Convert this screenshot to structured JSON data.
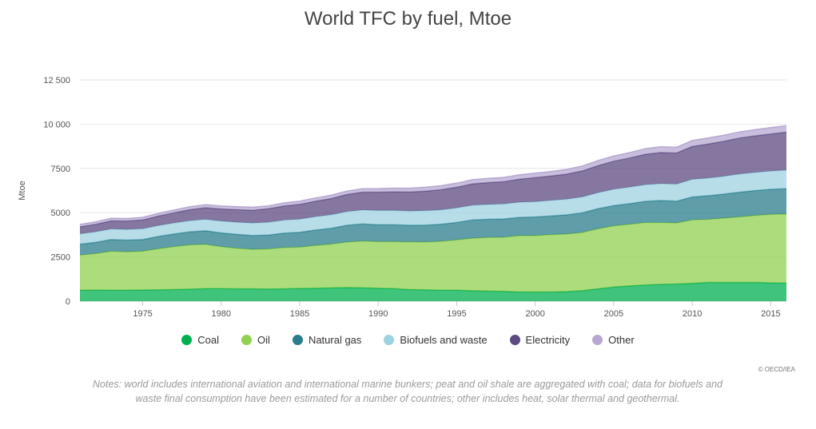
{
  "title": "World TFC by fuel, Mtoe",
  "credit": "© OECD/IEA",
  "notes": "Notes: world includes international aviation and international marine bunkers; peat and oil shale are aggregated with coal; data for biofuels and waste final consumption have been estimated for a number of countries; other includes heat, solar thermal and geothermal.",
  "chart_data": {
    "type": "area",
    "stacked": true,
    "title": "World TFC by fuel, Mtoe",
    "xlabel": "",
    "ylabel": "Mtoe",
    "xlim": [
      1971,
      2016
    ],
    "ylim": [
      0,
      12500
    ],
    "x_ticks": [
      1975,
      1980,
      1985,
      1990,
      1995,
      2000,
      2005,
      2010,
      2015
    ],
    "y_ticks": [
      0,
      2500,
      5000,
      7500,
      10000,
      12500
    ],
    "y_tick_labels": [
      "0",
      "2500",
      "5000",
      "7500",
      "10 000",
      "12 500"
    ],
    "grid": true,
    "legend": "bottom",
    "x": [
      1971,
      1972,
      1973,
      1974,
      1975,
      1976,
      1977,
      1978,
      1979,
      1980,
      1981,
      1982,
      1983,
      1984,
      1985,
      1986,
      1987,
      1988,
      1989,
      1990,
      1991,
      1992,
      1993,
      1994,
      1995,
      1996,
      1997,
      1998,
      1999,
      2000,
      2001,
      2002,
      2003,
      2004,
      2005,
      2006,
      2007,
      2008,
      2009,
      2010,
      2011,
      2012,
      2013,
      2014,
      2015,
      2016
    ],
    "series": [
      {
        "name": "Coal",
        "color": "#00b050",
        "values": [
          620,
          625,
          620,
          620,
          630,
          640,
          660,
          680,
          710,
          710,
          700,
          700,
          690,
          700,
          720,
          730,
          750,
          770,
          760,
          730,
          710,
          660,
          640,
          620,
          620,
          590,
          570,
          560,
          520,
          520,
          520,
          540,
          600,
          700,
          800,
          860,
          910,
          950,
          970,
          1010,
          1060,
          1060,
          1060,
          1060,
          1040,
          1020
        ]
      },
      {
        "name": "Oil",
        "color": "#92d050",
        "values": [
          1980,
          2060,
          2200,
          2170,
          2190,
          2320,
          2420,
          2500,
          2500,
          2370,
          2290,
          2230,
          2260,
          2330,
          2330,
          2420,
          2470,
          2570,
          2640,
          2630,
          2650,
          2690,
          2700,
          2760,
          2840,
          2960,
          3030,
          3050,
          3180,
          3180,
          3240,
          3250,
          3280,
          3390,
          3450,
          3480,
          3530,
          3490,
          3450,
          3580,
          3560,
          3630,
          3700,
          3780,
          3860,
          3900
        ]
      },
      {
        "name": "Natural gas",
        "color": "#2a7d8c",
        "values": [
          620,
          640,
          670,
          660,
          670,
          700,
          720,
          740,
          770,
          780,
          790,
          780,
          790,
          820,
          840,
          870,
          900,
          950,
          970,
          960,
          960,
          940,
          960,
          970,
          990,
          1040,
          1030,
          1040,
          1040,
          1060,
          1060,
          1090,
          1120,
          1140,
          1150,
          1170,
          1200,
          1250,
          1230,
          1300,
          1340,
          1360,
          1400,
          1410,
          1420,
          1440
        ]
      },
      {
        "name": "Biofuels and waste",
        "color": "#9dd2e0",
        "values": [
          580,
          590,
          590,
          600,
          600,
          610,
          620,
          630,
          640,
          660,
          680,
          700,
          720,
          730,
          740,
          750,
          760,
          770,
          780,
          800,
          800,
          800,
          810,
          810,
          820,
          830,
          830,
          840,
          850,
          860,
          870,
          880,
          890,
          900,
          920,
          930,
          940,
          950,
          960,
          990,
          990,
          1000,
          1020,
          1020,
          1030,
          1040
        ]
      },
      {
        "name": "Electricity",
        "color": "#5c4a80",
        "values": [
          400,
          430,
          460,
          480,
          500,
          540,
          580,
          620,
          660,
          690,
          710,
          730,
          760,
          800,
          840,
          880,
          920,
          970,
          1010,
          1040,
          1060,
          1080,
          1110,
          1140,
          1170,
          1210,
          1240,
          1260,
          1300,
          1360,
          1380,
          1420,
          1470,
          1530,
          1590,
          1650,
          1720,
          1760,
          1760,
          1860,
          1930,
          1980,
          2040,
          2070,
          2100,
          2150
        ]
      },
      {
        "name": "Other",
        "color": "#b7a8d1",
        "values": [
          130,
          135,
          140,
          140,
          145,
          150,
          155,
          160,
          165,
          165,
          165,
          165,
          165,
          170,
          175,
          180,
          185,
          190,
          195,
          200,
          205,
          210,
          215,
          220,
          225,
          230,
          235,
          240,
          245,
          250,
          255,
          260,
          270,
          280,
          290,
          300,
          310,
          320,
          320,
          330,
          340,
          340,
          340,
          345,
          350,
          360
        ]
      }
    ]
  }
}
